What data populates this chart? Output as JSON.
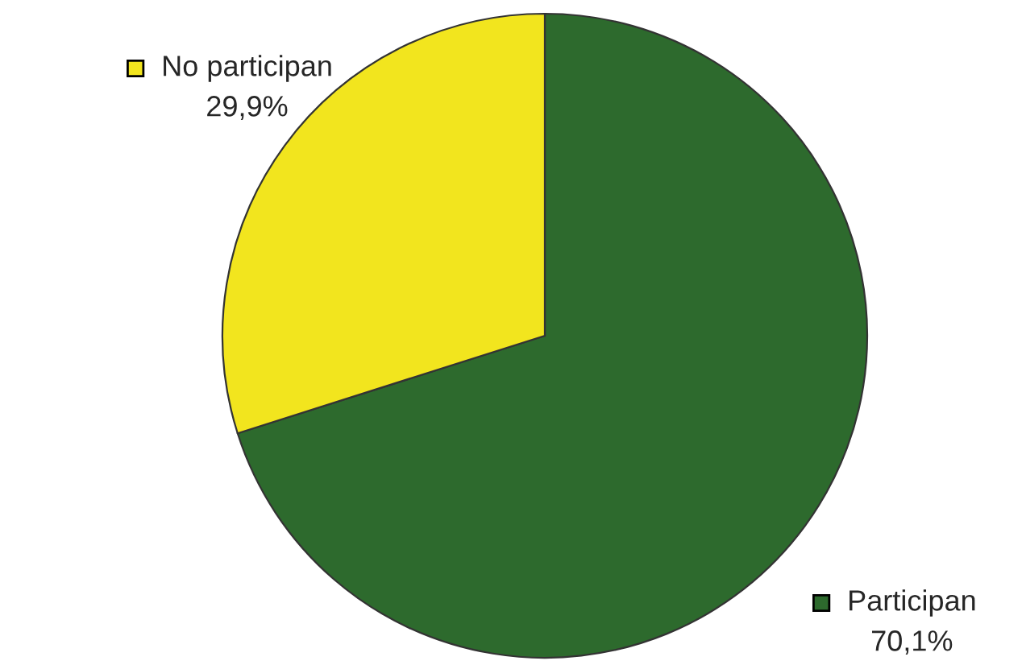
{
  "chart_data": {
    "type": "pie",
    "categories": [
      "Participan",
      "No participan"
    ],
    "values": [
      70.1,
      29.9
    ],
    "colors": [
      "#2d6a2d",
      "#f2e51e"
    ],
    "value_labels": [
      "70,1%",
      "29,9%"
    ],
    "legend": "bottom right"
  }
}
